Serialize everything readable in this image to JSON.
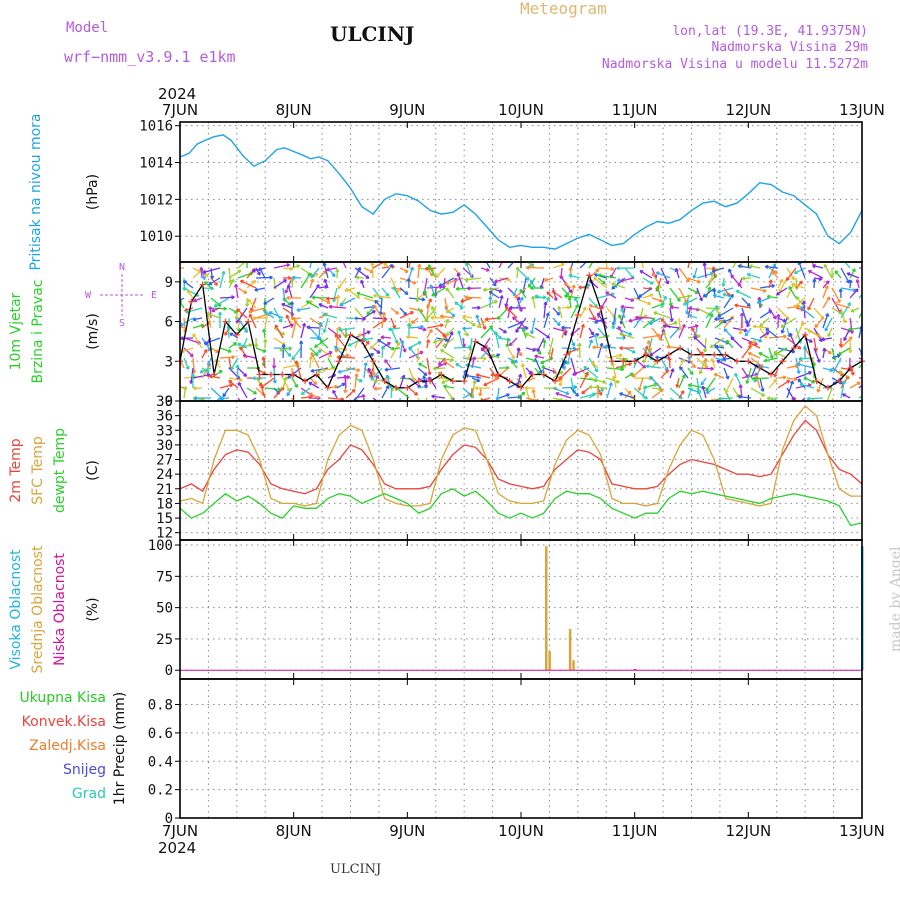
{
  "header": {
    "model_label": "Model",
    "model_name": "wrf−nmm_v3.9.1  e1km",
    "station_title": "ULCINJ",
    "meteogram_label": "Meteogram",
    "location_line": "lon,lat (19.3E, 41.9375N)",
    "elevation_line": "Nadmorska Visina 29m",
    "model_elevation_line": "Nadmorska Visina u modelu 11.5272m",
    "footer_station": "ULCINJ",
    "watermark": "made by Angel"
  },
  "colors": {
    "pressure": "#1fa3e8",
    "temp2m": "#e8453c",
    "sfc": "#d9a43a",
    "dewpt": "#2ad12a",
    "wind_speed": "#000000",
    "wind_marker": "#e8453c",
    "cloud_high": "#1fb5dd",
    "cloud_mid": "#d9a43a",
    "cloud_low": "#d1129b",
    "precip_total": "#2ac92a",
    "precip_conv": "#e8453c",
    "precip_frozen": "#f07d2a",
    "precip_snow": "#4a4adf",
    "precip_graupel": "#2ac9b8",
    "purple_text": "#b45be0",
    "gold_text": "#e0b870"
  },
  "chart_data": [
    {
      "type": "line",
      "id": "pressure",
      "ylabel": "(hPa)",
      "side_labels": [
        "Pritisak na nivou mora"
      ],
      "x_unit": "days since 7 JUN 2024 00UTC",
      "ylim": [
        1008.6,
        1016.2
      ],
      "yticks": [
        1010,
        1012,
        1014,
        1016
      ],
      "x_ticks": [
        "7JUN",
        "8JUN",
        "9JUN",
        "10JUN",
        "11JUN",
        "12JUN",
        "13JUN"
      ],
      "year_label": "2024",
      "grid": true,
      "series": [
        {
          "name": "Pritisak na nivou mora",
          "color": "#1fa3e8",
          "x": [
            0,
            0.08,
            0.15,
            0.22,
            0.3,
            0.38,
            0.45,
            0.55,
            0.65,
            0.75,
            0.85,
            0.92,
            1.0,
            1.08,
            1.15,
            1.22,
            1.3,
            1.4,
            1.5,
            1.6,
            1.7,
            1.8,
            1.9,
            2.0,
            2.1,
            2.2,
            2.3,
            2.4,
            2.5,
            2.6,
            2.7,
            2.8,
            2.9,
            3.0,
            3.1,
            3.2,
            3.3,
            3.4,
            3.5,
            3.6,
            3.7,
            3.8,
            3.9,
            4.0,
            4.1,
            4.2,
            4.3,
            4.4,
            4.5,
            4.6,
            4.7,
            4.8,
            4.9,
            5.0,
            5.1,
            5.2,
            5.3,
            5.4,
            5.5,
            5.6,
            5.7,
            5.8,
            5.9,
            6.0
          ],
          "values": [
            1014.3,
            1014.5,
            1015.0,
            1015.2,
            1015.4,
            1015.5,
            1015.2,
            1014.4,
            1013.8,
            1014.1,
            1014.7,
            1014.8,
            1014.6,
            1014.4,
            1014.2,
            1014.3,
            1014.1,
            1013.4,
            1012.6,
            1011.6,
            1011.2,
            1012.0,
            1012.3,
            1012.2,
            1011.9,
            1011.4,
            1011.2,
            1011.3,
            1011.7,
            1011.2,
            1010.5,
            1009.8,
            1009.4,
            1009.5,
            1009.4,
            1009.4,
            1009.3,
            1009.6,
            1009.9,
            1010.1,
            1009.8,
            1009.5,
            1009.6,
            1010.1,
            1010.5,
            1010.8,
            1010.7,
            1010.9,
            1011.4,
            1011.8,
            1011.9,
            1011.6,
            1011.8,
            1012.3,
            1012.9,
            1012.8,
            1012.4,
            1012.2,
            1011.7,
            1011.2,
            1010.0,
            1009.6,
            1010.2,
            1011.4
          ]
        }
      ]
    },
    {
      "type": "line",
      "id": "wind",
      "ylabel": "(m/s)",
      "side_labels": [
        "10m Vjetar",
        "Brzina i Pravac"
      ],
      "compass": {
        "top": "N",
        "left": "W",
        "right": "E",
        "bottom": "S"
      },
      "ylim": [
        0,
        10.5
      ],
      "yticks": [
        0,
        3,
        6,
        9
      ],
      "grid": true,
      "arrow_colors": [
        "#ff4a2a",
        "#ff8a2a",
        "#e8c02a",
        "#9ad12a",
        "#2ad12a",
        "#2ad1b8",
        "#2ab0f0",
        "#2a60f0",
        "#7a2af0",
        "#c02ad1"
      ],
      "series": [
        {
          "name": "10m Vjetar",
          "color": "#000000",
          "x": [
            0,
            0.1,
            0.2,
            0.3,
            0.4,
            0.5,
            0.6,
            0.7,
            0.8,
            0.9,
            1.0,
            1.1,
            1.2,
            1.3,
            1.4,
            1.5,
            1.6,
            1.7,
            1.8,
            1.9,
            2.0,
            2.1,
            2.2,
            2.3,
            2.4,
            2.5,
            2.6,
            2.7,
            2.8,
            2.9,
            3.0,
            3.1,
            3.2,
            3.3,
            3.4,
            3.5,
            3.6,
            3.7,
            3.8,
            3.9,
            4.0,
            4.1,
            4.2,
            4.3,
            4.4,
            4.5,
            4.6,
            4.7,
            4.8,
            4.9,
            5.0,
            5.1,
            5.2,
            5.3,
            5.4,
            5.5,
            5.6,
            5.7,
            5.8,
            5.9,
            6.0
          ],
          "values": [
            3.0,
            7.5,
            8.8,
            2.0,
            6.0,
            5.0,
            6.0,
            2.0,
            2.0,
            2.0,
            2.0,
            1.5,
            2.0,
            1.0,
            3.0,
            5.0,
            4.5,
            3.0,
            1.5,
            1.0,
            1.0,
            1.5,
            1.5,
            2.0,
            1.5,
            1.5,
            4.5,
            4.0,
            2.0,
            1.5,
            1.0,
            2.0,
            2.0,
            1.5,
            3.5,
            6.5,
            9.5,
            7.0,
            3.0,
            3.0,
            3.0,
            3.5,
            3.0,
            3.5,
            4.0,
            3.5,
            3.5,
            3.5,
            3.5,
            3.0,
            3.0,
            2.5,
            2.0,
            3.0,
            4.0,
            5.0,
            1.5,
            1.0,
            1.5,
            2.5,
            3.0
          ]
        }
      ]
    },
    {
      "type": "line",
      "id": "temperature",
      "ylabel": "(C)",
      "side_labels": [
        "2m Temp",
        "SFC Temp",
        "dewpt Temp"
      ],
      "ylim": [
        10.5,
        39
      ],
      "yticks": [
        12,
        15,
        18,
        21,
        24,
        27,
        30,
        33,
        36,
        39
      ],
      "grid": true,
      "series": [
        {
          "name": "2m Temp",
          "color": "#e8453c",
          "x": [
            0,
            0.1,
            0.2,
            0.3,
            0.4,
            0.5,
            0.6,
            0.7,
            0.8,
            0.9,
            1.0,
            1.1,
            1.2,
            1.3,
            1.4,
            1.5,
            1.6,
            1.7,
            1.8,
            1.9,
            2.0,
            2.1,
            2.2,
            2.3,
            2.4,
            2.5,
            2.6,
            2.7,
            2.8,
            2.9,
            3.0,
            3.1,
            3.2,
            3.3,
            3.4,
            3.5,
            3.6,
            3.7,
            3.8,
            3.9,
            4.0,
            4.1,
            4.2,
            4.3,
            4.4,
            4.5,
            4.6,
            4.7,
            4.8,
            4.9,
            5.0,
            5.1,
            5.2,
            5.3,
            5.4,
            5.5,
            5.6,
            5.7,
            5.8,
            5.9,
            6.0
          ],
          "values": [
            21,
            22,
            20.5,
            25,
            28,
            29,
            28.5,
            26,
            22,
            21,
            20.5,
            20,
            21,
            25,
            27,
            30,
            29,
            26,
            22,
            21,
            21,
            21,
            21.5,
            25,
            28,
            30,
            29.5,
            27,
            23,
            22,
            21.5,
            21,
            21.5,
            25,
            27,
            29,
            28.5,
            27,
            22,
            21.5,
            21,
            21,
            21.5,
            24,
            26,
            27,
            26.5,
            26,
            25,
            24,
            24,
            23.5,
            24,
            28,
            32,
            35,
            33,
            28,
            25,
            24,
            22
          ]
        },
        {
          "name": "SFC Temp",
          "color": "#d9a43a",
          "x": [
            0,
            0.1,
            0.2,
            0.3,
            0.4,
            0.5,
            0.6,
            0.7,
            0.8,
            0.9,
            1.0,
            1.1,
            1.2,
            1.3,
            1.4,
            1.5,
            1.6,
            1.7,
            1.8,
            1.9,
            2.0,
            2.1,
            2.2,
            2.3,
            2.4,
            2.5,
            2.6,
            2.7,
            2.8,
            2.9,
            3.0,
            3.1,
            3.2,
            3.3,
            3.4,
            3.5,
            3.6,
            3.7,
            3.8,
            3.9,
            4.0,
            4.1,
            4.2,
            4.3,
            4.4,
            4.5,
            4.6,
            4.7,
            4.8,
            4.9,
            5.0,
            5.1,
            5.2,
            5.3,
            5.4,
            5.5,
            5.6,
            5.7,
            5.8,
            5.9,
            6.0
          ],
          "values": [
            18.5,
            19,
            18,
            27,
            33,
            33,
            32,
            27,
            19,
            18,
            18,
            17.5,
            18,
            27,
            32,
            34,
            33,
            27,
            19,
            18,
            17.5,
            17.5,
            18,
            27,
            32,
            33.5,
            33,
            27,
            20,
            18.5,
            18,
            18,
            18.5,
            26,
            31,
            33,
            32,
            28,
            19,
            18,
            18,
            17.5,
            18,
            25,
            30,
            33,
            32,
            27,
            19,
            18.5,
            18,
            17.5,
            18,
            29,
            35,
            38,
            36,
            28,
            21,
            19.5,
            19.5
          ]
        },
        {
          "name": "dewpt Temp",
          "color": "#2ad12a",
          "x": [
            0,
            0.1,
            0.2,
            0.3,
            0.4,
            0.5,
            0.6,
            0.7,
            0.8,
            0.9,
            1.0,
            1.1,
            1.2,
            1.3,
            1.4,
            1.5,
            1.6,
            1.7,
            1.8,
            1.9,
            2.0,
            2.1,
            2.2,
            2.3,
            2.4,
            2.5,
            2.6,
            2.7,
            2.8,
            2.9,
            3.0,
            3.1,
            3.2,
            3.3,
            3.4,
            3.5,
            3.6,
            3.7,
            3.8,
            3.9,
            4.0,
            4.1,
            4.2,
            4.3,
            4.4,
            4.5,
            4.6,
            4.7,
            4.8,
            4.9,
            5.0,
            5.1,
            5.2,
            5.3,
            5.4,
            5.5,
            5.6,
            5.7,
            5.8,
            5.9,
            6.0
          ],
          "values": [
            17,
            15,
            16,
            18,
            20,
            18.5,
            19.5,
            18,
            16,
            15,
            17.5,
            17,
            17,
            19,
            20,
            19.5,
            18,
            19,
            20,
            19,
            18,
            16,
            17,
            20,
            21,
            19.5,
            20.5,
            18.5,
            16,
            15,
            16,
            15,
            16,
            19,
            20.5,
            20,
            20,
            19,
            17,
            16,
            15,
            16,
            16,
            19,
            20.5,
            20,
            20.5,
            20,
            19.5,
            19,
            18.5,
            18,
            19,
            19.5,
            20,
            19.5,
            19,
            18.5,
            17.5,
            13.5,
            14
          ]
        }
      ]
    },
    {
      "type": "bar",
      "id": "clouds",
      "ylabel": "(%)",
      "side_labels": [
        "Visoka Oblacnost",
        "Srednja Oblacnost",
        "Niska Oblacnost"
      ],
      "ylim": [
        -7,
        104
      ],
      "yticks": [
        0,
        25,
        50,
        75,
        100
      ],
      "grid": true,
      "series": [
        {
          "name": "Visoka Oblacnost",
          "color": "#1fb5dd",
          "x": [
            6.0
          ],
          "values": [
            99
          ]
        },
        {
          "name": "Srednja Oblacnost",
          "color": "#d9a43a",
          "x": [
            3.22,
            3.25,
            3.43,
            3.46
          ],
          "values": [
            99,
            15,
            33,
            8
          ]
        },
        {
          "name": "Niska Oblacnost",
          "color": "#d1129b",
          "x": [
            4.0
          ],
          "values": [
            1
          ]
        }
      ]
    },
    {
      "type": "bar",
      "id": "precip",
      "ylabel": "1hr Precip (mm)",
      "side_labels": [
        "Ukupna Kisa",
        "Konvek.Kisa",
        "Zaledj.Kisa",
        "Snijeg",
        "Grad"
      ],
      "ylim": [
        0,
        0.98
      ],
      "yticks": [
        0,
        0.2,
        0.4,
        0.6,
        0.8
      ],
      "grid": true,
      "bottom_ticks": [
        "7JUN",
        "8JUN",
        "9JUN",
        "10JUN",
        "11JUN",
        "12JUN",
        "13JUN"
      ],
      "bottom_year": "2024",
      "series": [
        {
          "name": "Ukupna Kisa",
          "color": "#2ac92a",
          "x": [],
          "values": []
        },
        {
          "name": "Konvek.Kisa",
          "color": "#e8453c",
          "x": [],
          "values": []
        },
        {
          "name": "Zaledj.Kisa",
          "color": "#f07d2a",
          "x": [],
          "values": []
        },
        {
          "name": "Snijeg",
          "color": "#4a4adf",
          "x": [],
          "values": []
        },
        {
          "name": "Grad",
          "color": "#2ac9b8",
          "x": [],
          "values": []
        }
      ]
    }
  ]
}
